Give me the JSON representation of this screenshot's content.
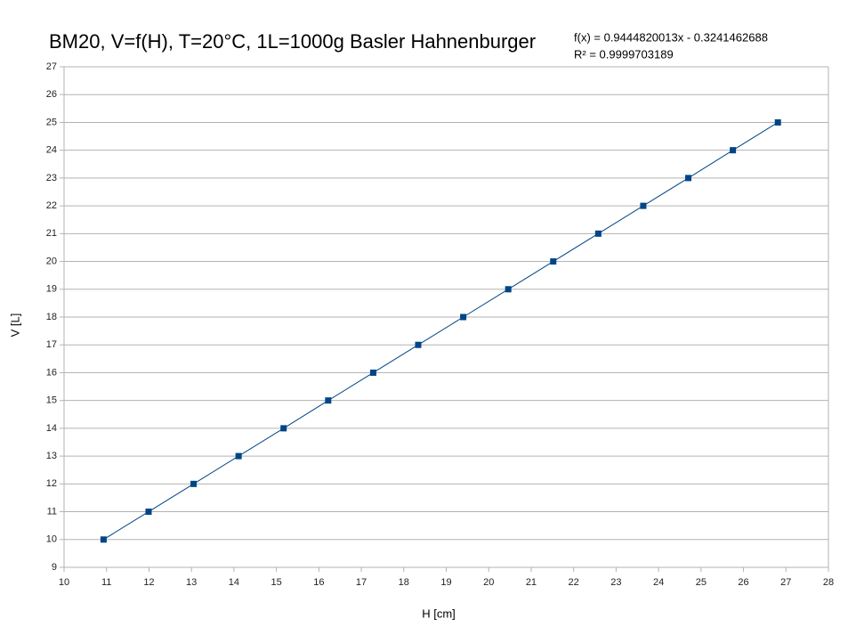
{
  "chart_data": {
    "type": "scatter-line",
    "title": "BM20, V=f(H), T=20°C, 1L=1000g Basler Hahnenburger",
    "annotations": [
      "f(x) = 0.9444820013x - 0.3241462688",
      "R² = 0.9999703189"
    ],
    "x_label": "H [cm]",
    "y_label": "V [L]",
    "x": [
      10.93,
      11.99,
      13.05,
      14.11,
      15.17,
      16.22,
      17.28,
      18.34,
      19.4,
      20.46,
      21.52,
      22.58,
      23.64,
      24.7,
      25.75,
      26.81
    ],
    "values": [
      10,
      11,
      12,
      13,
      14,
      15,
      16,
      17,
      18,
      19,
      20,
      21,
      22,
      23,
      24,
      25
    ],
    "color": "#004586",
    "xlim": [
      10,
      28
    ],
    "xticks": [
      10,
      11,
      12,
      13,
      14,
      15,
      16,
      17,
      18,
      19,
      20,
      21,
      22,
      23,
      24,
      25,
      26,
      27,
      28
    ],
    "ylim": [
      9,
      27
    ],
    "yticks": [
      9,
      10,
      11,
      12,
      13,
      14,
      15,
      16,
      17,
      18,
      19,
      20,
      21,
      22,
      23,
      24,
      25,
      26,
      27
    ],
    "grid": true
  }
}
